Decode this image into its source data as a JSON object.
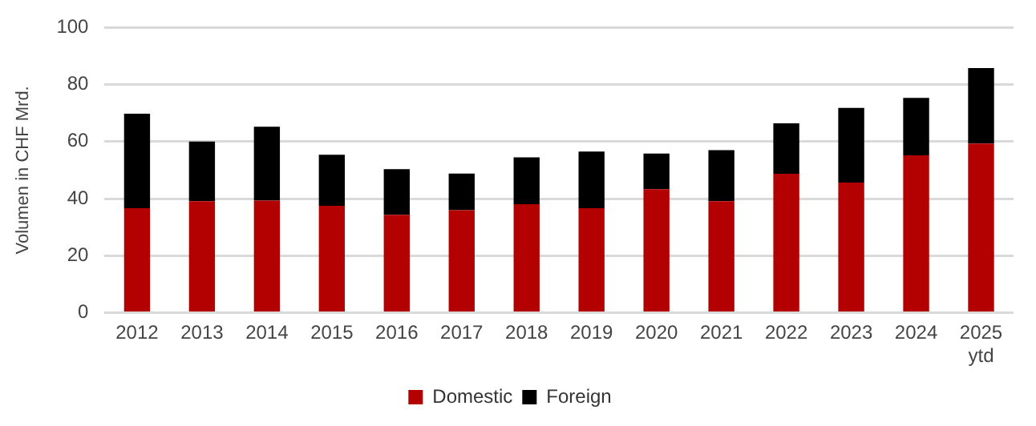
{
  "chart_data": {
    "type": "bar",
    "stacked": true,
    "ylabel": "Volumen in CHF Mrd.",
    "categories": [
      "2012",
      "2013",
      "2014",
      "2015",
      "2016",
      "2017",
      "2018",
      "2019",
      "2020",
      "2021",
      "2022",
      "2023",
      "2024",
      "2025\nytd"
    ],
    "series": [
      {
        "name": "Domestic",
        "color": "#b30000",
        "values": [
          36.6,
          39.1,
          39.3,
          37.5,
          34.3,
          35.9,
          38.0,
          36.6,
          43.3,
          39.1,
          48.7,
          45.6,
          55.2,
          59.3
        ]
      },
      {
        "name": "Foreign",
        "color": "#000000",
        "values": [
          33.2,
          20.9,
          25.9,
          17.9,
          16.0,
          12.9,
          16.5,
          19.9,
          12.5,
          17.9,
          17.7,
          26.2,
          20.1,
          26.5
        ]
      }
    ],
    "ylim": [
      0,
      100
    ],
    "yticks": [
      0,
      20,
      40,
      60,
      80,
      100
    ],
    "grid": "y",
    "legend": "bottom"
  }
}
